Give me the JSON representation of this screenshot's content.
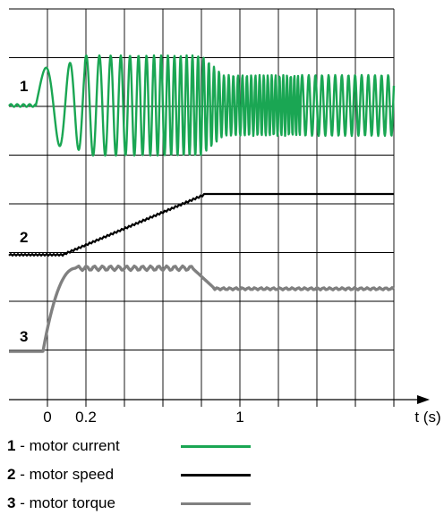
{
  "chart_data": {
    "type": "line",
    "xlabel": "t (s)",
    "x_ticks": [
      "0",
      "0.2",
      "1"
    ],
    "grid": true,
    "legend_placement": "bottom-left",
    "series": [
      {
        "id": "1",
        "name": "motor current",
        "color": "#1aa653",
        "description_points": {
          "t": [
            -0.05,
            0.0,
            0.6,
            0.8,
            1.35
          ],
          "amplitude": [
            0.0,
            0.6,
            1.0,
            0.6,
            0.6
          ]
        }
      },
      {
        "id": "2",
        "name": "motor speed",
        "color": "#000000",
        "points": {
          "t": [
            -0.05,
            0.1,
            0.8,
            1.35
          ],
          "level": [
            0.0,
            0.0,
            1.0,
            1.0
          ]
        }
      },
      {
        "id": "3",
        "name": "motor torque",
        "color": "#808080",
        "points": {
          "t": [
            -0.05,
            0.0,
            0.15,
            0.7,
            0.8,
            1.35
          ],
          "level": [
            0.0,
            0.0,
            1.0,
            1.0,
            0.25,
            0.25
          ]
        }
      }
    ]
  },
  "legend": [
    {
      "num": "1",
      "sep": " - ",
      "label": "motor current"
    },
    {
      "num": "2",
      "sep": " - ",
      "label": "motor speed"
    },
    {
      "num": "3",
      "sep": " - ",
      "label": "motor torque"
    }
  ]
}
